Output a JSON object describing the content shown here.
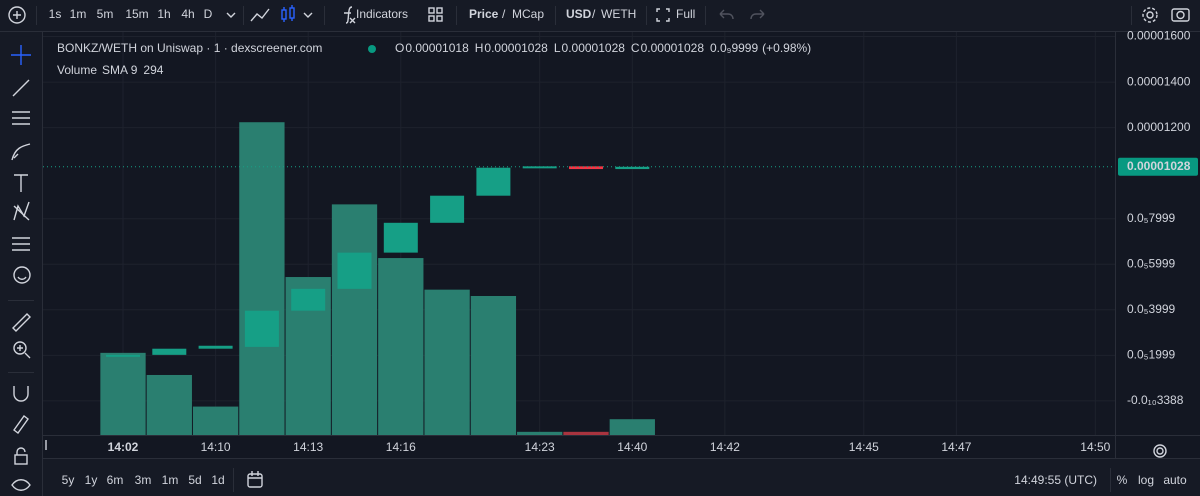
{
  "toolbar": {
    "timeframes": [
      "1s",
      "1m",
      "5m",
      "15m",
      "1h",
      "4h",
      "D"
    ],
    "active_timeframe": 1,
    "indicators": "Indicators",
    "price_toggle": [
      "Price",
      "/",
      "MCap"
    ],
    "currency_toggle": [
      "USD",
      "/",
      "WETH"
    ],
    "full": "Full"
  },
  "legend": {
    "title": "BONKZ/WETH on Uniswap · 1 · dexscreener.com",
    "ohlc": [
      {
        "label": "O",
        "value": "0.00001018"
      },
      {
        "label": "H",
        "value": "0.00001028"
      },
      {
        "label": "L",
        "value": "0.00001028"
      },
      {
        "label": "C",
        "value": "0.00001028"
      }
    ],
    "change": "0.0₉9999",
    "change_pct": "(+0.98%)",
    "volume": "Volume",
    "sma": "SMA 9"
  },
  "chart_data": {
    "type": "candlestick",
    "categories": [
      "14:02",
      null,
      "14:10",
      null,
      "14:13",
      null,
      "14:16",
      null,
      null,
      "14:23",
      null,
      "14:40",
      null,
      "14:42",
      null,
      null,
      "14:45",
      null,
      "14:47",
      null,
      null,
      "14:50"
    ],
    "open": [
      2e-06,
      2.02e-06,
      2.29e-06,
      2.37e-06,
      3.96e-06,
      4.92e-06,
      6.51e-06,
      7.82e-06,
      9.01e-06,
      1.024e-05,
      1.03e-05,
      1.018e-05,
      null,
      null,
      null,
      null,
      null,
      null,
      null,
      null,
      null,
      null
    ],
    "close": [
      2.02e-06,
      2.29e-06,
      2.42e-06,
      3.96e-06,
      4.92e-06,
      6.51e-06,
      7.82e-06,
      9.01e-06,
      1.024e-05,
      1.03e-05,
      1.018e-05,
      1.028e-05,
      null,
      null,
      null,
      null,
      null,
      null,
      null,
      null,
      null,
      null
    ],
    "volume": [
      1529,
      1117,
      529,
      5821,
      2940,
      4292,
      3293,
      2705,
      2587,
      59,
      59,
      294,
      null,
      null,
      null,
      null,
      null,
      null,
      null,
      null,
      null,
      null
    ],
    "up_color": "#169f86",
    "down_color": "#f23645",
    "volume_up_color": "#2a7f70",
    "volume_down_color": "#a8343f",
    "ylim": [
      -1.5e-06,
      1.62e-05
    ],
    "volume_ylim": [
      0,
      7500
    ],
    "yticks": [
      {
        "value": 1.6e-05,
        "label": "0.00001600"
      },
      {
        "value": 1.4e-05,
        "label": "0.00001400"
      },
      {
        "value": 1.2e-05,
        "label": "0.00001200"
      },
      {
        "value": 7.999e-06,
        "label": "0.0₅7999"
      },
      {
        "value": 5.999e-06,
        "label": "0.0₅5999"
      },
      {
        "value": 3.999e-06,
        "label": "0.0₅3999"
      },
      {
        "value": 1.999e-06,
        "label": "0.0₅1999"
      },
      {
        "value": -3.388e-11,
        "label": "-0.0₁₀3388"
      }
    ],
    "grid": true,
    "last_price": {
      "value": 1.028e-05,
      "label": "0.00001028"
    }
  },
  "bottom_bar": {
    "ranges": [
      "5y",
      "1y",
      "6m",
      "3m",
      "1m",
      "5d",
      "1d"
    ],
    "clock": "14:49:55 (UTC)",
    "percent": "%",
    "log": "log",
    "auto": "auto"
  }
}
